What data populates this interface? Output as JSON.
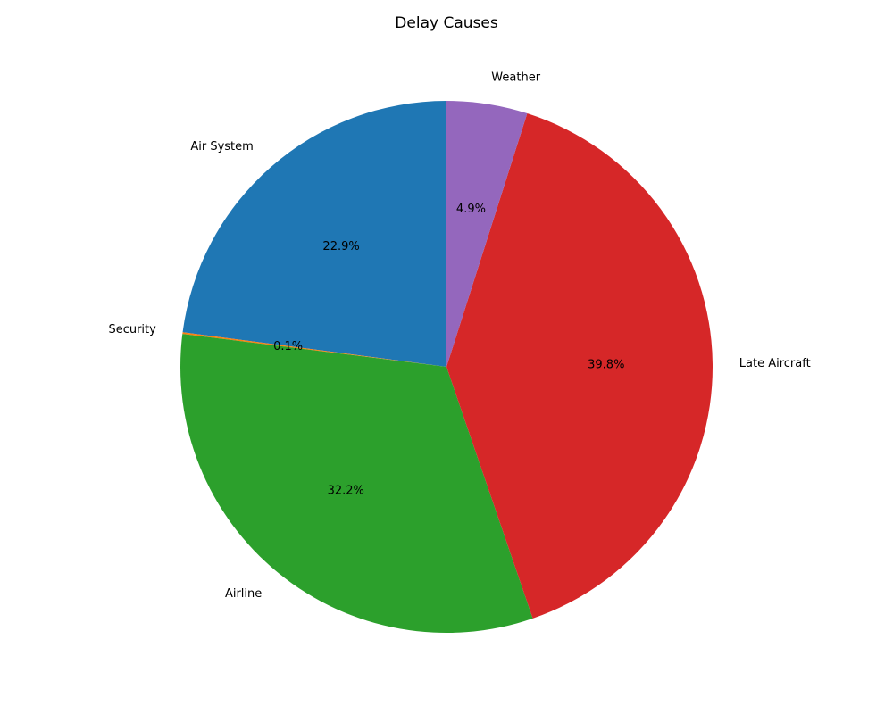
{
  "chart_data": {
    "type": "pie",
    "title": "Delay Causes",
    "start_angle_deg": 90,
    "direction": "counterclockwise",
    "slices": [
      {
        "label": "Air System",
        "percent_label": "22.9%",
        "value": 22.9,
        "color": "#1f77b4"
      },
      {
        "label": "Security",
        "percent_label": "0.1%",
        "value": 0.1,
        "color": "#ff7f0e"
      },
      {
        "label": "Airline",
        "percent_label": "32.2%",
        "value": 32.2,
        "color": "#2ca02c"
      },
      {
        "label": "Late Aircraft",
        "percent_label": "39.8%",
        "value": 39.8,
        "color": "#d62728"
      },
      {
        "label": "Weather",
        "percent_label": "4.9%",
        "value": 4.9,
        "color": "#9467bd"
      }
    ]
  }
}
